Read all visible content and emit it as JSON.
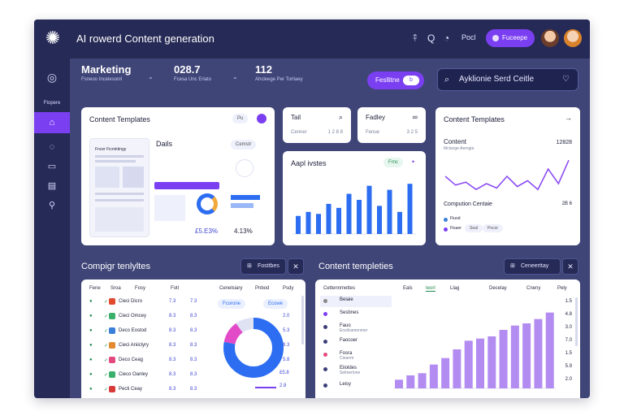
{
  "app": {
    "title": "AI rowerd Content generation"
  },
  "topbar": {
    "icon1": "⤉",
    "icon2": "Q",
    "icon3": "◔",
    "link": "Pocl",
    "button_label": "Fuceepe"
  },
  "sidebar": {
    "label": "Ftopere",
    "items": [
      "logo-icon",
      "home-icon",
      "chat-icon",
      "image-icon",
      "calendar-icon",
      "rocket-icon"
    ]
  },
  "stats": [
    {
      "value": "Marketing",
      "sub": "Fsneoo Incelesonil"
    },
    {
      "value": "028.7",
      "sub": "Fcesa Unc Erlato"
    },
    {
      "value": "112",
      "sub": "Ahcleege Per Tortiaey"
    }
  ],
  "controls": {
    "pill_label": "Fesllitne",
    "pill_knob": "b",
    "search_text": "Ayklionie Serd Ceitle"
  },
  "templates_card": {
    "title": "Content Templates",
    "button_label": "Pu",
    "doc_heading": "Fncer Ficrnktingy",
    "panel_title": "Dails",
    "panel_btn": "Cemstr",
    "stat1": "£5.E3%",
    "stat2": "4.13%"
  },
  "small_card_1": {
    "title": "Tail",
    "sub": "Cenner",
    "value": "1 2 8 8"
  },
  "small_card_2": {
    "title": "Fadley",
    "sub": "Fenue",
    "value": "3 2 5"
  },
  "bar_card": {
    "title": "Aapl ivstes",
    "tag": "Frnc",
    "color": "#2c6df2"
  },
  "right_card": {
    "title": "Content Templates",
    "content_label": "Content",
    "content_sub": "Mclunge Aerngia",
    "content_value": "12828",
    "comp_label": "Compution Centaie",
    "comp_value": "2B 6",
    "legend": [
      "Fiuod",
      "Fisaer",
      "Seal",
      "Pocor"
    ]
  },
  "bottom_left": {
    "title": "Compigr tenlyltes",
    "btn_label": "Fosttbes",
    "headers": [
      "Fene",
      "Sroa",
      "Fosy",
      "Fotl",
      "Cenelsiary",
      "Pnbod",
      "Psdy"
    ],
    "rows": [
      {
        "name": "Cieci Dicro",
        "v1": "7.3",
        "v2": "7.3",
        "color": "#e24a2f"
      },
      {
        "name": "Cieci Omcey",
        "v1": "8.3",
        "v2": "8.3",
        "color": "#3ab06b"
      },
      {
        "name": "Deco Eostod",
        "v1": "8.3",
        "v2": "8.3",
        "color": "#3a7fd8"
      },
      {
        "name": "Cieci Aniiclyry",
        "v1": "8.3",
        "v2": "8.3",
        "color": "#e28a2f"
      },
      {
        "name": "Deco Ceag",
        "v1": "8.3",
        "v2": "8.3",
        "color": "#e24a7f"
      },
      {
        "name": "Cieco Oanley",
        "v1": "8.3",
        "v2": "8.3",
        "color": "#3ab06b"
      },
      {
        "name": "Pecti Ceay",
        "v1": "8.3",
        "v2": "8.3",
        "color": "#d83a3a"
      }
    ],
    "badges": [
      "Fcorone",
      "Ecowe"
    ],
    "side_values": [
      "2.0",
      "5.3",
      "8.3",
      "5.8",
      "£5.8",
      "2.8"
    ],
    "donut": {
      "primary": 78,
      "secondary": 12,
      "tertiary": 10
    }
  },
  "bottom_right": {
    "title": "Content templeties",
    "btn_label": "Ceneerttay",
    "headers": [
      "Cettennmettes",
      "Eals",
      "Ieorl",
      "Llag",
      "Decelay",
      "Cneny",
      "Pely"
    ],
    "rows": [
      {
        "name": "Beiaie",
        "sub": "",
        "color": "#888"
      },
      {
        "name": "Sesbnes",
        "sub": "",
        "color": "#7b3ff2"
      },
      {
        "name": "Fauo",
        "sub": "Ensilcamenmer",
        "color": "#3c3f7a"
      },
      {
        "name": "Faocoer",
        "sub": "",
        "color": "#3c3f7a"
      },
      {
        "name": "Fosra",
        "sub": "Cieanm",
        "color": "#e24a7f"
      },
      {
        "name": "Eiioldes",
        "sub": "Selmerlone",
        "color": "#3c3f7a"
      },
      {
        "name": "Leisy",
        "sub": "",
        "color": "#3c3f7a"
      }
    ],
    "side_values": [
      "1.5",
      "4.8",
      "3.0",
      "7.0",
      "1.5",
      "5.9",
      "2.0"
    ]
  },
  "chart_data": [
    {
      "type": "bar",
      "title": "Aapl ivstes",
      "values": [
        18,
        22,
        20,
        30,
        26,
        40,
        34,
        48,
        28,
        44,
        22,
        50
      ],
      "ylim": [
        0,
        55
      ]
    },
    {
      "type": "bar",
      "title": "Content templeties",
      "values": [
        8,
        12,
        14,
        22,
        28,
        36,
        44,
        46,
        48,
        54,
        58,
        60,
        64,
        70
      ],
      "ylim": [
        0,
        75
      ]
    },
    {
      "type": "line",
      "title": "Content",
      "values": [
        30,
        18,
        22,
        12,
        20,
        14,
        30,
        16,
        24,
        12,
        40,
        20,
        52
      ],
      "ylim": [
        0,
        60
      ]
    }
  ]
}
